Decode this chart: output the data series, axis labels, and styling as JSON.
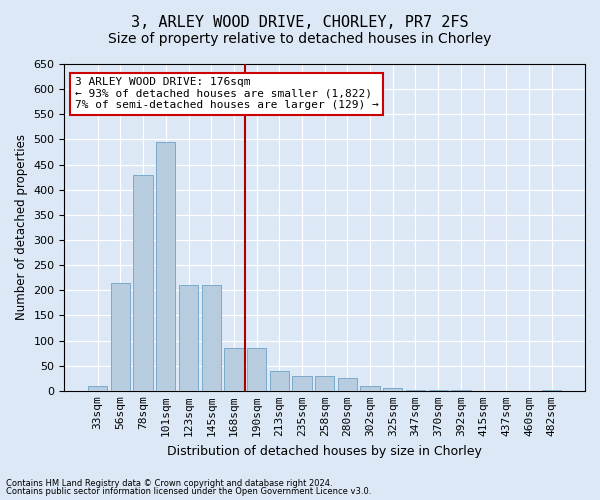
{
  "title": "3, ARLEY WOOD DRIVE, CHORLEY, PR7 2FS",
  "subtitle": "Size of property relative to detached houses in Chorley",
  "xlabel": "Distribution of detached houses by size in Chorley",
  "ylabel": "Number of detached properties",
  "footnote1": "Contains HM Land Registry data © Crown copyright and database right 2024.",
  "footnote2": "Contains public sector information licensed under the Open Government Licence v3.0.",
  "categories": [
    "33sqm",
    "56sqm",
    "78sqm",
    "101sqm",
    "123sqm",
    "145sqm",
    "168sqm",
    "190sqm",
    "213sqm",
    "235sqm",
    "258sqm",
    "280sqm",
    "302sqm",
    "325sqm",
    "347sqm",
    "370sqm",
    "392sqm",
    "415sqm",
    "437sqm",
    "460sqm",
    "482sqm"
  ],
  "values": [
    10,
    215,
    430,
    495,
    210,
    210,
    85,
    85,
    40,
    30,
    30,
    25,
    10,
    5,
    2,
    1,
    1,
    0,
    0,
    0,
    2
  ],
  "bar_color": "#b8ccdf",
  "bar_edge_color": "#7aaacb",
  "vline_color": "#aa0000",
  "annotation_text_line1": "3 ARLEY WOOD DRIVE: 176sqm",
  "annotation_text_line2": "← 93% of detached houses are smaller (1,822)",
  "annotation_text_line3": "7% of semi-detached houses are larger (129) →",
  "annotation_box_color": "#cc0000",
  "ylim": [
    0,
    650
  ],
  "yticks": [
    0,
    50,
    100,
    150,
    200,
    250,
    300,
    350,
    400,
    450,
    500,
    550,
    600,
    650
  ],
  "background_color": "#dce8f5",
  "grid_color": "#ffffff",
  "title_fontsize": 11,
  "subtitle_fontsize": 10,
  "xlabel_fontsize": 9,
  "ylabel_fontsize": 8.5,
  "tick_fontsize": 8,
  "ann_fontsize": 8
}
